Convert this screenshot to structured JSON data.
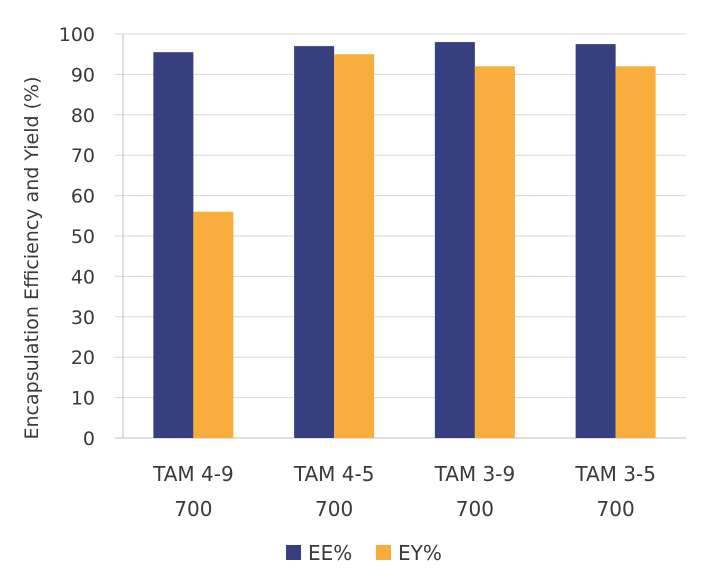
{
  "chart_data": {
    "type": "bar",
    "categories": [
      [
        "TAM 4-9",
        "700"
      ],
      [
        "TAM 4-5",
        "700"
      ],
      [
        "TAM 3-9",
        "700"
      ],
      [
        "TAM 3-5",
        "700"
      ]
    ],
    "series": [
      {
        "name": "EE%",
        "values": [
          95.5,
          97,
          98,
          97.5
        ],
        "color": "#363f80"
      },
      {
        "name": "EY%",
        "values": [
          56,
          95,
          92,
          92
        ],
        "color": "#f8ad3c"
      }
    ],
    "ylabel": "Encapsulation Efficiency and Yield (%)",
    "xlabel": "",
    "title": "",
    "ylim": [
      0,
      100
    ],
    "yticks": [
      0,
      10,
      20,
      30,
      40,
      50,
      60,
      70,
      80,
      90,
      100
    ],
    "grid": true,
    "legend_position": "bottom"
  }
}
